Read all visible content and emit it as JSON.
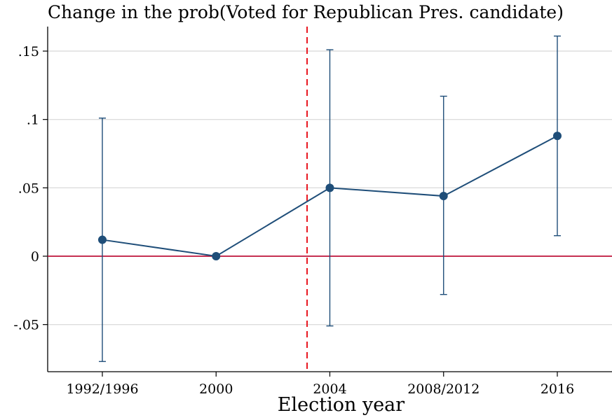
{
  "chart_data": {
    "type": "line",
    "title": "Change in the prob(Voted for Republican Pres. candidate)",
    "xlabel": "Election year",
    "ylabel": "",
    "categories": [
      "1992/1996",
      "2000",
      "2004",
      "2008/2012",
      "2016"
    ],
    "series": [
      {
        "values": [
          0.012,
          0.0,
          0.05,
          0.044,
          0.088
        ],
        "ci_low": [
          -0.077,
          0.0,
          -0.051,
          -0.028,
          0.015
        ],
        "ci_high": [
          0.101,
          0.0,
          0.151,
          0.117,
          0.161
        ]
      }
    ],
    "ylim": [
      -0.08,
      0.165
    ],
    "yticks": [
      -0.05,
      0,
      0.05,
      0.1,
      0.15
    ],
    "ytick_labels": [
      "-.05",
      "0",
      ".05",
      ".1",
      ".15"
    ],
    "reference_lines": {
      "horizontal_y": 0,
      "vertical_x_between": [
        "2000",
        "2004"
      ],
      "vertical_x_position": 2.8
    },
    "grid": true,
    "colors": {
      "series": "#1f4e79",
      "zero_line": "#c0143c",
      "vertical_line": "#e8141e",
      "grid": "#dddddd"
    }
  }
}
